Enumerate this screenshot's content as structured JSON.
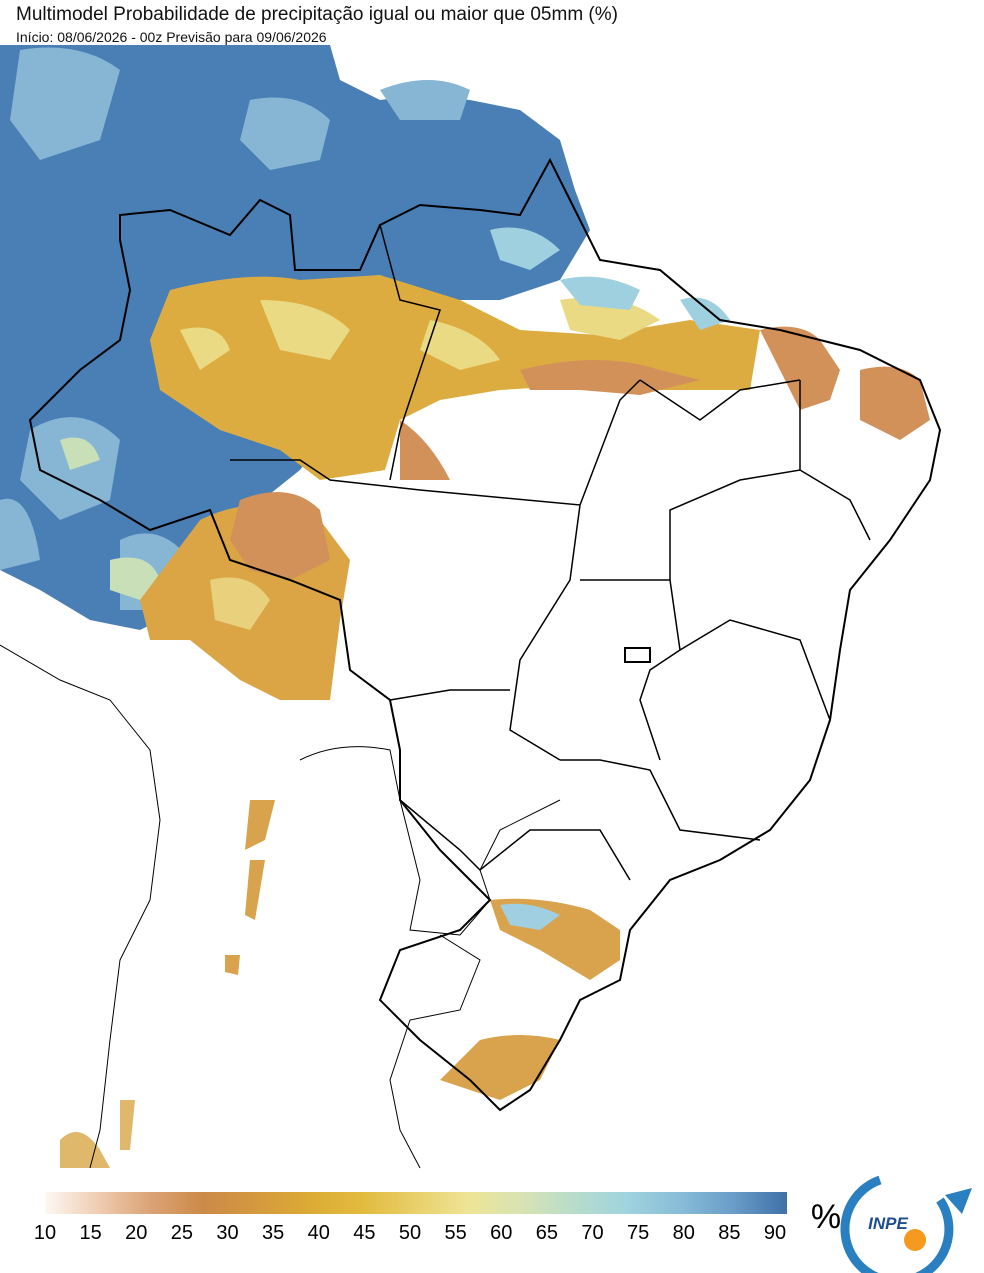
{
  "header": {
    "title": "Multimodel Probabilidade de precipitação igual ou maior que 05mm (%)",
    "subtitle": "Início: 08/06/2026 - 00z  Previsão para 09/06/2026"
  },
  "colorbar": {
    "ticks": [
      "10",
      "15",
      "20",
      "25",
      "30",
      "35",
      "40",
      "45",
      "50",
      "55",
      "60",
      "65",
      "70",
      "75",
      "80",
      "85",
      "90"
    ],
    "unit": "%",
    "colors": [
      "#fdf8f3",
      "#efcdb2",
      "#dba275",
      "#cc8a48",
      "#d4993e",
      "#dcab35",
      "#e2bb3e",
      "#e9d06a",
      "#eee497",
      "#d8e3b3",
      "#b8dccb",
      "#9fd3df",
      "#88bcd8",
      "#6a9cc8",
      "#3f70a8"
    ]
  },
  "logo": {
    "text": "INPE"
  }
}
